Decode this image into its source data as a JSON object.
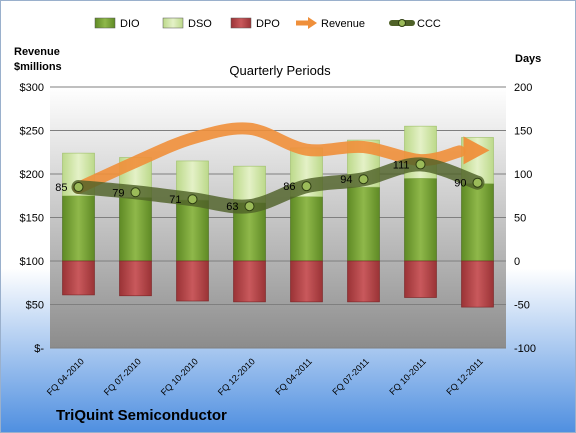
{
  "chart_data": {
    "type": "bar",
    "title": "Quarterly Periods",
    "company": "TriQuint Semiconductor",
    "left_axis": {
      "title_line1": "Revenue",
      "title_line2": "$millions",
      "ticks": [
        "$-",
        "$50",
        "$100",
        "$150",
        "$200",
        "$250",
        "$300"
      ],
      "min": 0,
      "max": 300
    },
    "right_axis": {
      "title": "Days",
      "ticks": [
        "-100",
        "-50",
        "0",
        "50",
        "100",
        "150",
        "200"
      ],
      "min": -100,
      "max": 200
    },
    "categories": [
      "FQ 04-2010",
      "FQ 07-2010",
      "FQ 10-2010",
      "FQ 12-2010",
      "FQ 04-2011",
      "FQ 07-2011",
      "FQ 10-2011",
      "FQ 12-2011"
    ],
    "series": [
      {
        "name": "DIO",
        "values": [
          75,
          73,
          70,
          67,
          74,
          85,
          95,
          89
        ],
        "color": "#7aa33a"
      },
      {
        "name": "DSO",
        "values": [
          49,
          46,
          45,
          42,
          56,
          54,
          60,
          53
        ],
        "color": "#cfe5a3"
      },
      {
        "name": "DPO",
        "values": [
          -39,
          -40,
          -46,
          -47,
          -47,
          -47,
          -42,
          -53
        ],
        "color": "#b5474a"
      },
      {
        "name": "Revenue",
        "values": [
          184,
          214,
          241,
          252,
          228,
          231,
          216,
          226
        ],
        "color": "#ef8f3a"
      },
      {
        "name": "CCC",
        "values": [
          85,
          79,
          71,
          63,
          86,
          94,
          111,
          90
        ],
        "color": "#4f6228"
      }
    ],
    "ccc_labels": [
      "85",
      "79",
      "71",
      "63",
      "86",
      "94",
      "111",
      "90"
    ],
    "grid": true,
    "legend_position": "top"
  }
}
